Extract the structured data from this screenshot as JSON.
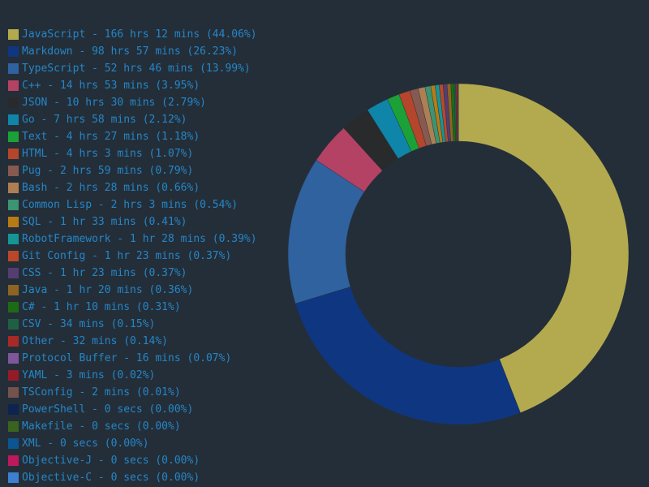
{
  "chart_data": {
    "type": "pie",
    "donut": true,
    "title": "",
    "legend_position": "left",
    "series": [
      {
        "name": "JavaScript",
        "label": "JavaScript - 166 hrs 12 mins (44.06%)",
        "value": 44.06,
        "color": "#b3aa4f"
      },
      {
        "name": "Markdown",
        "label": "Markdown - 98 hrs 57 mins (26.23%)",
        "value": 26.23,
        "color": "#0f3681"
      },
      {
        "name": "TypeScript",
        "label": "TypeScript - 52 hrs 46 mins (13.99%)",
        "value": 13.99,
        "color": "#2f629e"
      },
      {
        "name": "C++",
        "label": "C++ - 14 hrs 53 mins (3.95%)",
        "value": 3.95,
        "color": "#b44265"
      },
      {
        "name": "JSON",
        "label": "JSON - 10 hrs 30 mins (2.79%)",
        "value": 2.79,
        "color": "#292a2c"
      },
      {
        "name": "Go",
        "label": "Go - 7 hrs 58 mins (2.12%)",
        "value": 2.12,
        "color": "#0f85aa"
      },
      {
        "name": "Text",
        "label": "Text - 4 hrs 27 mins (1.18%)",
        "value": 1.18,
        "color": "#1ba138"
      },
      {
        "name": "HTML",
        "label": "HTML - 4 hrs 3 mins (1.07%)",
        "value": 1.07,
        "color": "#b5452b"
      },
      {
        "name": "Pug",
        "label": "Pug - 2 hrs 59 mins (0.79%)",
        "value": 0.79,
        "color": "#865a50"
      },
      {
        "name": "Bash",
        "label": "Bash - 2 hrs 28 mins (0.66%)",
        "value": 0.66,
        "color": "#ad7f52"
      },
      {
        "name": "Common Lisp",
        "label": "Common Lisp - 2 hrs 3 mins (0.54%)",
        "value": 0.54,
        "color": "#3c9472"
      },
      {
        "name": "SQL",
        "label": "SQL - 1 hr 33 mins (0.41%)",
        "value": 0.41,
        "color": "#b77b16"
      },
      {
        "name": "RobotFramework",
        "label": "RobotFramework - 1 hr 28 mins (0.39%)",
        "value": 0.39,
        "color": "#169595"
      },
      {
        "name": "Git Config",
        "label": "Git Config - 1 hr 23 mins (0.37%)",
        "value": 0.37,
        "color": "#b9482b"
      },
      {
        "name": "CSS",
        "label": "CSS - 1 hr 23 mins (0.37%)",
        "value": 0.37,
        "color": "#553d72"
      },
      {
        "name": "Java",
        "label": "Java - 1 hr 20 mins (0.36%)",
        "value": 0.36,
        "color": "#8d6421"
      },
      {
        "name": "C#",
        "label": "C# - 1 hr 10 mins (0.31%)",
        "value": 0.31,
        "color": "#1d6b15"
      },
      {
        "name": "CSV",
        "label": "CSV - 34 mins (0.15%)",
        "value": 0.15,
        "color": "#1f6044"
      },
      {
        "name": "Other",
        "label": "Other - 32 mins (0.14%)",
        "value": 0.14,
        "color": "#a92929"
      },
      {
        "name": "Protocol Buffer",
        "label": "Protocol Buffer - 16 mins (0.07%)",
        "value": 0.07,
        "color": "#7f569b"
      },
      {
        "name": "YAML",
        "label": "YAML - 3 mins (0.02%)",
        "value": 0.02,
        "color": "#951b26"
      },
      {
        "name": "TSConfig",
        "label": "TSConfig - 2 mins (0.01%)",
        "value": 0.01,
        "color": "#74524d"
      },
      {
        "name": "PowerShell",
        "label": "PowerShell - 0 secs (0.00%)",
        "value": 0.0,
        "color": "#0d2450"
      },
      {
        "name": "Makefile",
        "label": "Makefile - 0 secs (0.00%)",
        "value": 0.0,
        "color": "#3a6320"
      },
      {
        "name": "XML",
        "label": "XML - 0 secs (0.00%)",
        "value": 0.0,
        "color": "#0b5592"
      },
      {
        "name": "Objective-J",
        "label": "Objective-J - 0 secs (0.00%)",
        "value": 0.0,
        "color": "#c0185d"
      },
      {
        "name": "Objective-C",
        "label": "Objective-C - 0 secs (0.00%)",
        "value": 0.0,
        "color": "#3d7fd0"
      }
    ]
  }
}
